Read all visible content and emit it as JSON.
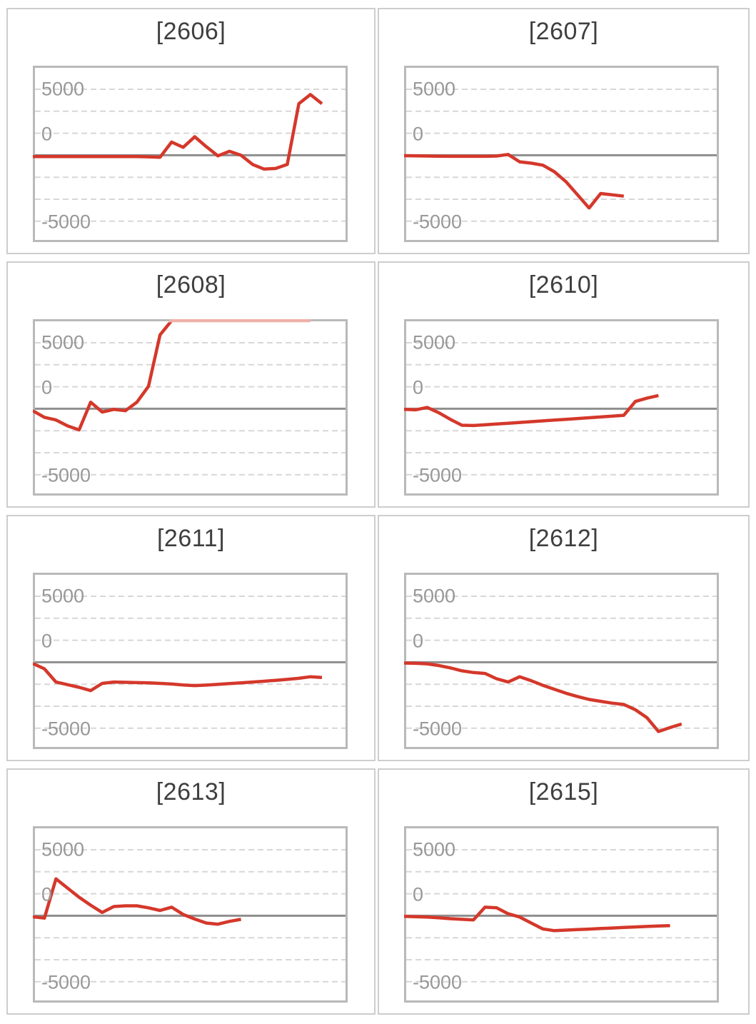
{
  "page": {
    "background": "#ffffff"
  },
  "style": {
    "line_color": "#d4382b",
    "line_overflow_color": "#efb0a8",
    "grid_color": "#d7d7d7",
    "zero_line_color": "#8e8e8e",
    "plot_border_color": "#b9b9b9",
    "panel_border_color": "#cdcdcd",
    "title_color": "#3f3f3f",
    "tick_color": "#989898"
  },
  "axis": {
    "ticks": [
      {
        "label": "5000",
        "value": 5000,
        "gridline_index": 0
      },
      {
        "label": "0",
        "value": 0,
        "gridline_index": 2
      },
      {
        "label": "-5000",
        "value": -5000,
        "gridline_index": 6
      }
    ],
    "gridlines": {
      "count": 7,
      "style": "dashed",
      "zero_line_index": 3,
      "zero_line_style": "solid"
    },
    "unit_per_gridline_step": 1666.7,
    "ylim": [
      -6600,
      6800
    ]
  },
  "chart_data": [
    {
      "type": "line",
      "title": "[2606]",
      "legend": "none",
      "grid": "horizontal-dashed",
      "tick_values": [
        5000,
        0,
        -5000
      ],
      "values": [
        -100,
        -100,
        -100,
        -100,
        -100,
        -100,
        -100,
        -100,
        -100,
        -100,
        -120,
        -150,
        1000,
        600,
        1400,
        650,
        -50,
        300,
        0,
        -700,
        -1050,
        -1000,
        -700,
        3900,
        4600,
        3900
      ]
    },
    {
      "type": "line",
      "title": "[2607]",
      "legend": "none",
      "grid": "horizontal-dashed",
      "tick_values": [
        5000,
        0,
        -5000
      ],
      "values": [
        -30,
        -50,
        -60,
        -70,
        -80,
        -80,
        -80,
        -80,
        -60,
        60,
        -500,
        -600,
        -750,
        -1250,
        -2000,
        -3000,
        -4000,
        -2900,
        -3000,
        -3100
      ]
    },
    {
      "type": "line",
      "title": "[2608]",
      "legend": "none",
      "grid": "horizontal-dashed",
      "tick_values": [
        5000,
        0,
        -5000
      ],
      "values": [
        -150,
        -650,
        -850,
        -1300,
        -1600,
        500,
        -250,
        -50,
        -150,
        500,
        1700,
        5600,
        7000,
        7000,
        7000,
        7000,
        7000,
        7000,
        7000,
        7000,
        7000,
        7000,
        7000,
        7000,
        7000
      ]
    },
    {
      "type": "line",
      "title": "[2610]",
      "legend": "none",
      "grid": "horizontal-dashed",
      "tick_values": [
        5000,
        0,
        -5000
      ],
      "values": [
        -50,
        -80,
        100,
        -300,
        -800,
        -1250,
        -1270,
        -1220,
        -1160,
        -1100,
        -1040,
        -980,
        -920,
        -860,
        -800,
        -740,
        -680,
        -620,
        -560,
        -500,
        550,
        800,
        1000
      ]
    },
    {
      "type": "line",
      "title": "[2611]",
      "legend": "none",
      "grid": "horizontal-dashed",
      "tick_values": [
        5000,
        0,
        -5000
      ],
      "values": [
        -100,
        -500,
        -1500,
        -1700,
        -1900,
        -2150,
        -1600,
        -1500,
        -1520,
        -1540,
        -1560,
        -1600,
        -1650,
        -1720,
        -1770,
        -1730,
        -1680,
        -1620,
        -1560,
        -1500,
        -1440,
        -1370,
        -1300,
        -1220,
        -1100,
        -1150
      ]
    },
    {
      "type": "line",
      "title": "[2612]",
      "legend": "none",
      "grid": "horizontal-dashed",
      "tick_values": [
        5000,
        0,
        -5000
      ],
      "values": [
        -60,
        -80,
        -120,
        -250,
        -430,
        -650,
        -780,
        -850,
        -1250,
        -1500,
        -1100,
        -1400,
        -1750,
        -2050,
        -2350,
        -2600,
        -2820,
        -2960,
        -3100,
        -3200,
        -3600,
        -4200,
        -5250,
        -4950,
        -4680
      ]
    },
    {
      "type": "line",
      "title": "[2613]",
      "legend": "none",
      "grid": "horizontal-dashed",
      "tick_values": [
        5000,
        0,
        -5000
      ],
      "values": [
        -80,
        -180,
        2800,
        2100,
        1400,
        800,
        250,
        700,
        750,
        750,
        600,
        400,
        650,
        100,
        -250,
        -550,
        -640,
        -430,
        -270
      ]
    },
    {
      "type": "line",
      "title": "[2615]",
      "legend": "none",
      "grid": "horizontal-dashed",
      "tick_values": [
        5000,
        0,
        -5000
      ],
      "values": [
        -50,
        -70,
        -100,
        -150,
        -220,
        -270,
        -320,
        650,
        600,
        150,
        -100,
        -550,
        -1000,
        -1130,
        -1090,
        -1050,
        -1010,
        -970,
        -930,
        -890,
        -850,
        -810,
        -780,
        -750
      ]
    }
  ]
}
